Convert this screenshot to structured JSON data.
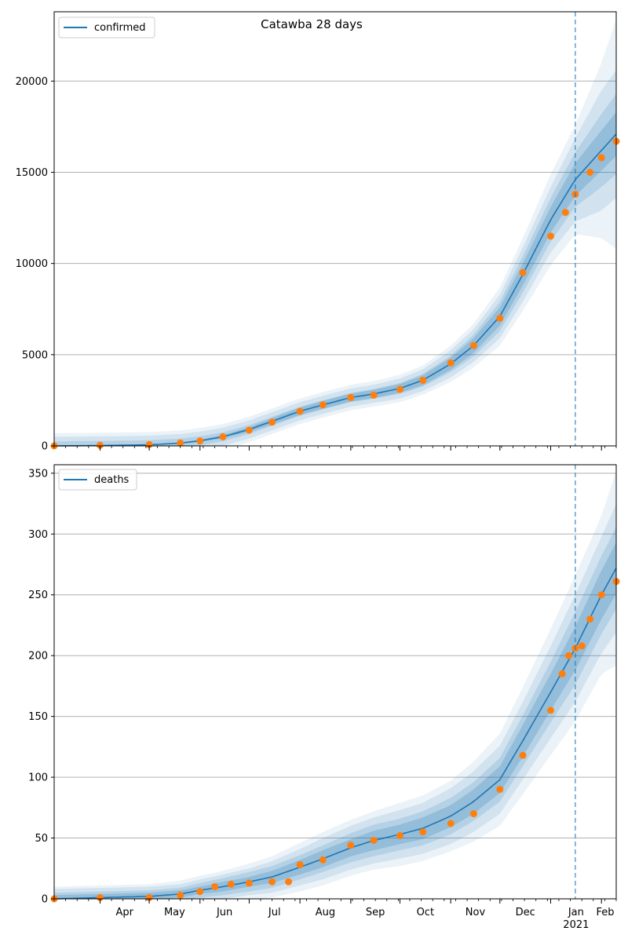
{
  "title": "Catawba 28 days",
  "colors": {
    "model": "#1f77b4",
    "observed": "#ff7f0e",
    "band": "#1f77b4",
    "grid": "#b0b0b0",
    "forecast_line": "#1f77b4"
  },
  "x_axis": {
    "tick_labels": [
      "Apr",
      "May",
      "Jun",
      "Jul",
      "Aug",
      "Sep",
      "Oct",
      "Nov",
      "Dec",
      "Jan",
      "Feb"
    ],
    "year_label": "2021"
  },
  "chart_data": [
    {
      "type": "line",
      "legend": "confirmed",
      "legend_position": "upper-left",
      "grid": "horizontal",
      "x_range": [
        "2020-03-04",
        "2021-02-10"
      ],
      "ylim": [
        0,
        23800
      ],
      "y_ticks": [
        0,
        5000,
        10000,
        15000,
        20000
      ],
      "forecast_start": "2021-01-16",
      "model": {
        "x": [
          "2020-03-04",
          "2020-04-01",
          "2020-05-01",
          "2020-05-20",
          "2020-06-01",
          "2020-06-15",
          "2020-07-01",
          "2020-07-15",
          "2020-08-01",
          "2020-08-15",
          "2020-09-01",
          "2020-09-15",
          "2020-10-01",
          "2020-10-15",
          "2020-11-01",
          "2020-11-15",
          "2020-12-01",
          "2020-12-15",
          "2021-01-01",
          "2021-01-16",
          "2021-02-01",
          "2021-02-10"
        ],
        "y": [
          0,
          20,
          60,
          150,
          280,
          500,
          900,
          1350,
          1900,
          2250,
          2650,
          2850,
          3150,
          3600,
          4500,
          5500,
          7100,
          9400,
          12400,
          14600,
          16200,
          17100
        ],
        "band_half_widths": [
          [
            0,
            250,
            500,
            700
          ],
          [
            0,
            250,
            500,
            700
          ],
          [
            20,
            250,
            500,
            700
          ],
          [
            40,
            250,
            500,
            700
          ],
          [
            60,
            250,
            500,
            700
          ],
          [
            90,
            250,
            500,
            700
          ],
          [
            130,
            250,
            500,
            700
          ],
          [
            170,
            250,
            500,
            700
          ],
          [
            200,
            250,
            500,
            700
          ],
          [
            210,
            250,
            500,
            700
          ],
          [
            220,
            250,
            500,
            700
          ],
          [
            230,
            260,
            500,
            700
          ],
          [
            240,
            300,
            550,
            750
          ],
          [
            270,
            350,
            600,
            800
          ],
          [
            330,
            450,
            750,
            1000
          ],
          [
            400,
            600,
            900,
            1200
          ],
          [
            500,
            800,
            1200,
            1600
          ],
          [
            600,
            1000,
            1500,
            2000
          ],
          [
            700,
            1200,
            1800,
            2500
          ],
          [
            900,
            1500,
            2300,
            3000
          ],
          [
            1100,
            2000,
            3300,
            4800
          ],
          [
            1200,
            2200,
            3500,
            6300
          ]
        ]
      },
      "observed": {
        "x": [
          "2020-03-04",
          "2020-04-01",
          "2020-05-01",
          "2020-05-20",
          "2020-06-01",
          "2020-06-15",
          "2020-07-01",
          "2020-07-15",
          "2020-08-01",
          "2020-08-15",
          "2020-09-01",
          "2020-09-15",
          "2020-10-01",
          "2020-10-15",
          "2020-11-01",
          "2020-11-15",
          "2020-12-01",
          "2020-12-15",
          "2021-01-01",
          "2021-01-10",
          "2021-01-16",
          "2021-01-25",
          "2021-02-01",
          "2021-02-10"
        ],
        "y": [
          0,
          30,
          70,
          160,
          270,
          500,
          860,
          1300,
          1900,
          2250,
          2650,
          2780,
          3100,
          3600,
          4550,
          5500,
          7000,
          9500,
          11500,
          12800,
          13800,
          15000,
          15800,
          16700
        ]
      }
    },
    {
      "type": "line",
      "legend": "deaths",
      "legend_position": "upper-left",
      "grid": "horizontal",
      "x_range": [
        "2020-03-04",
        "2021-02-10"
      ],
      "ylim": [
        0,
        357
      ],
      "y_ticks": [
        0,
        50,
        100,
        150,
        200,
        250,
        300,
        350
      ],
      "forecast_start": "2021-01-16",
      "model": {
        "x": [
          "2020-03-04",
          "2020-04-01",
          "2020-05-01",
          "2020-05-20",
          "2020-06-01",
          "2020-06-15",
          "2020-07-01",
          "2020-07-15",
          "2020-08-01",
          "2020-08-15",
          "2020-09-01",
          "2020-09-15",
          "2020-10-01",
          "2020-10-15",
          "2020-11-01",
          "2020-11-15",
          "2020-12-01",
          "2020-12-15",
          "2021-01-01",
          "2021-01-16",
          "2021-02-01",
          "2021-02-10"
        ],
        "y": [
          0,
          1,
          2,
          4,
          7,
          10,
          14,
          18,
          26,
          33,
          42,
          48,
          53,
          58,
          68,
          80,
          98,
          130,
          170,
          206,
          250,
          272
        ],
        "band_half_widths": [
          [
            3,
            5,
            8,
            10
          ],
          [
            3,
            5,
            8,
            10
          ],
          [
            3,
            5,
            8,
            10
          ],
          [
            3,
            5,
            8,
            11
          ],
          [
            3,
            6,
            9,
            12
          ],
          [
            4,
            7,
            10,
            13
          ],
          [
            4,
            8,
            11,
            15
          ],
          [
            5,
            9,
            13,
            17
          ],
          [
            6,
            10,
            15,
            20
          ],
          [
            7,
            11,
            17,
            22
          ],
          [
            7,
            12,
            18,
            23
          ],
          [
            8,
            13,
            19,
            24
          ],
          [
            8,
            13,
            20,
            26
          ],
          [
            9,
            14,
            21,
            27
          ],
          [
            9,
            15,
            23,
            29
          ],
          [
            10,
            16,
            25,
            33
          ],
          [
            11,
            18,
            28,
            38
          ],
          [
            13,
            21,
            32,
            44
          ],
          [
            15,
            25,
            38,
            52
          ],
          [
            18,
            30,
            44,
            60
          ],
          [
            20,
            32,
            48,
            65
          ],
          [
            21,
            34,
            53,
            80
          ]
        ]
      },
      "observed": {
        "x": [
          "2020-03-04",
          "2020-04-01",
          "2020-05-01",
          "2020-05-20",
          "2020-06-01",
          "2020-06-10",
          "2020-06-20",
          "2020-07-01",
          "2020-07-15",
          "2020-07-25",
          "2020-08-01",
          "2020-08-15",
          "2020-09-01",
          "2020-09-15",
          "2020-10-01",
          "2020-10-15",
          "2020-11-01",
          "2020-11-15",
          "2020-12-01",
          "2020-12-15",
          "2021-01-01",
          "2021-01-08",
          "2021-01-12",
          "2021-01-16",
          "2021-01-20",
          "2021-01-25",
          "2021-02-01",
          "2021-02-10"
        ],
        "y": [
          0,
          1,
          1,
          3,
          6,
          10,
          12,
          13,
          14,
          14,
          28,
          32,
          44,
          48,
          52,
          55,
          62,
          70,
          90,
          118,
          155,
          185,
          200,
          206,
          208,
          230,
          250,
          261
        ]
      }
    }
  ]
}
